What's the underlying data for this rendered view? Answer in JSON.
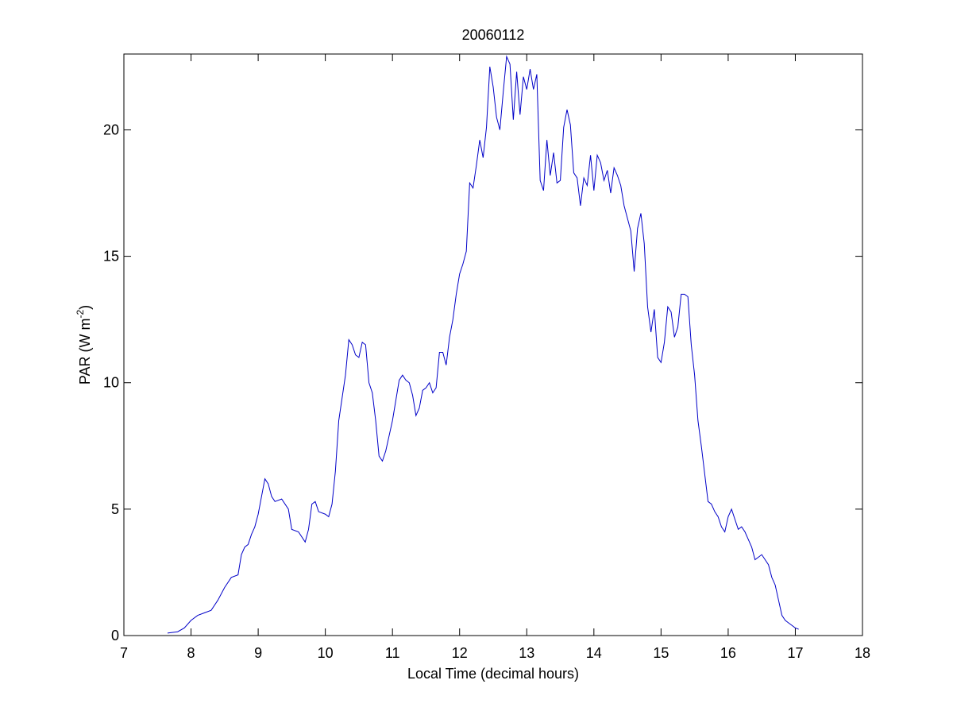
{
  "chart_data": {
    "type": "line",
    "title": "20060112",
    "x_label": "Local Time (decimal hours)",
    "y_label": [
      "PAR (W m",
      "-2",
      ")"
    ],
    "xlim": [
      7,
      18
    ],
    "xticks": [
      7,
      8,
      9,
      10,
      11,
      12,
      13,
      14,
      15,
      16,
      17,
      18
    ],
    "ylim": [
      0,
      23
    ],
    "yticks": [
      0,
      5,
      10,
      15,
      20
    ],
    "grid": false,
    "series": [
      {
        "color": "#0000c8",
        "x": [
          7.65,
          7.8,
          7.9,
          8.0,
          8.1,
          8.2,
          8.3,
          8.4,
          8.5,
          8.6,
          8.7,
          8.75,
          8.8,
          8.85,
          8.9,
          8.95,
          9.0,
          9.05,
          9.1,
          9.15,
          9.2,
          9.25,
          9.35,
          9.45,
          9.5,
          9.6,
          9.7,
          9.75,
          9.8,
          9.85,
          9.9,
          10.0,
          10.05,
          10.1,
          10.15,
          10.2,
          10.3,
          10.35,
          10.4,
          10.45,
          10.5,
          10.55,
          10.6,
          10.65,
          10.7,
          10.75,
          10.8,
          10.85,
          10.9,
          10.95,
          11.0,
          11.05,
          11.1,
          11.15,
          11.2,
          11.25,
          11.3,
          11.35,
          11.4,
          11.45,
          11.5,
          11.55,
          11.6,
          11.65,
          11.7,
          11.75,
          11.8,
          11.85,
          11.9,
          11.95,
          12.0,
          12.05,
          12.1,
          12.15,
          12.2,
          12.25,
          12.3,
          12.35,
          12.4,
          12.45,
          12.5,
          12.55,
          12.6,
          12.65,
          12.7,
          12.75,
          12.8,
          12.85,
          12.9,
          12.95,
          13.0,
          13.05,
          13.1,
          13.15,
          13.2,
          13.25,
          13.3,
          13.35,
          13.4,
          13.45,
          13.5,
          13.55,
          13.6,
          13.65,
          13.7,
          13.75,
          13.8,
          13.85,
          13.9,
          13.95,
          14.0,
          14.05,
          14.1,
          14.15,
          14.2,
          14.25,
          14.3,
          14.35,
          14.4,
          14.45,
          14.5,
          14.55,
          14.6,
          14.65,
          14.7,
          14.75,
          14.8,
          14.85,
          14.9,
          14.95,
          15.0,
          15.05,
          15.1,
          15.15,
          15.2,
          15.25,
          15.3,
          15.35,
          15.4,
          15.45,
          15.5,
          15.55,
          15.6,
          15.65,
          15.7,
          15.75,
          15.8,
          15.85,
          15.9,
          15.95,
          16.0,
          16.05,
          16.1,
          16.15,
          16.2,
          16.25,
          16.3,
          16.35,
          16.4,
          16.45,
          16.5,
          16.55,
          16.6,
          16.65,
          16.7,
          16.75,
          16.8,
          16.85,
          16.9,
          16.95,
          17.0,
          17.05
        ],
        "values": [
          0.1,
          0.15,
          0.3,
          0.6,
          0.8,
          0.9,
          1.0,
          1.4,
          1.9,
          2.3,
          2.4,
          3.2,
          3.5,
          3.6,
          4.0,
          4.3,
          4.8,
          5.5,
          6.2,
          6.0,
          5.5,
          5.3,
          5.4,
          5.0,
          4.2,
          4.1,
          3.7,
          4.2,
          5.2,
          5.3,
          4.9,
          4.8,
          4.7,
          5.2,
          6.5,
          8.5,
          10.3,
          11.7,
          11.5,
          11.1,
          11.0,
          11.6,
          11.5,
          10.0,
          9.6,
          8.5,
          7.1,
          6.9,
          7.3,
          7.9,
          8.5,
          9.3,
          10.1,
          10.3,
          10.1,
          10.0,
          9.5,
          8.7,
          9.0,
          9.7,
          9.8,
          10.0,
          9.6,
          9.8,
          11.2,
          11.2,
          10.7,
          11.8,
          12.5,
          13.5,
          14.3,
          14.7,
          15.2,
          17.9,
          17.7,
          18.6,
          19.6,
          18.9,
          20.1,
          22.5,
          21.7,
          20.5,
          20.0,
          21.5,
          22.9,
          22.6,
          20.4,
          22.3,
          20.6,
          22.1,
          21.6,
          22.4,
          21.6,
          22.2,
          18.0,
          17.6,
          19.6,
          18.2,
          19.1,
          17.9,
          18.0,
          20.1,
          20.8,
          20.2,
          18.3,
          18.1,
          17.0,
          18.1,
          17.8,
          19.0,
          17.6,
          19.0,
          18.7,
          18.0,
          18.4,
          17.5,
          18.5,
          18.2,
          17.8,
          17.0,
          16.5,
          16.0,
          14.4,
          16.1,
          16.7,
          15.5,
          13.0,
          12.0,
          12.9,
          11.0,
          10.8,
          11.6,
          13.0,
          12.8,
          11.8,
          12.2,
          13.5,
          13.5,
          13.4,
          11.5,
          10.3,
          8.5,
          7.5,
          6.4,
          5.3,
          5.2,
          4.9,
          4.7,
          4.3,
          4.1,
          4.7,
          5.0,
          4.6,
          4.2,
          4.3,
          4.1,
          3.8,
          3.5,
          3.0,
          3.1,
          3.2,
          3.0,
          2.8,
          2.3,
          2.0,
          1.4,
          0.8,
          0.6,
          0.5,
          0.4,
          0.3,
          0.25
        ]
      }
    ]
  }
}
